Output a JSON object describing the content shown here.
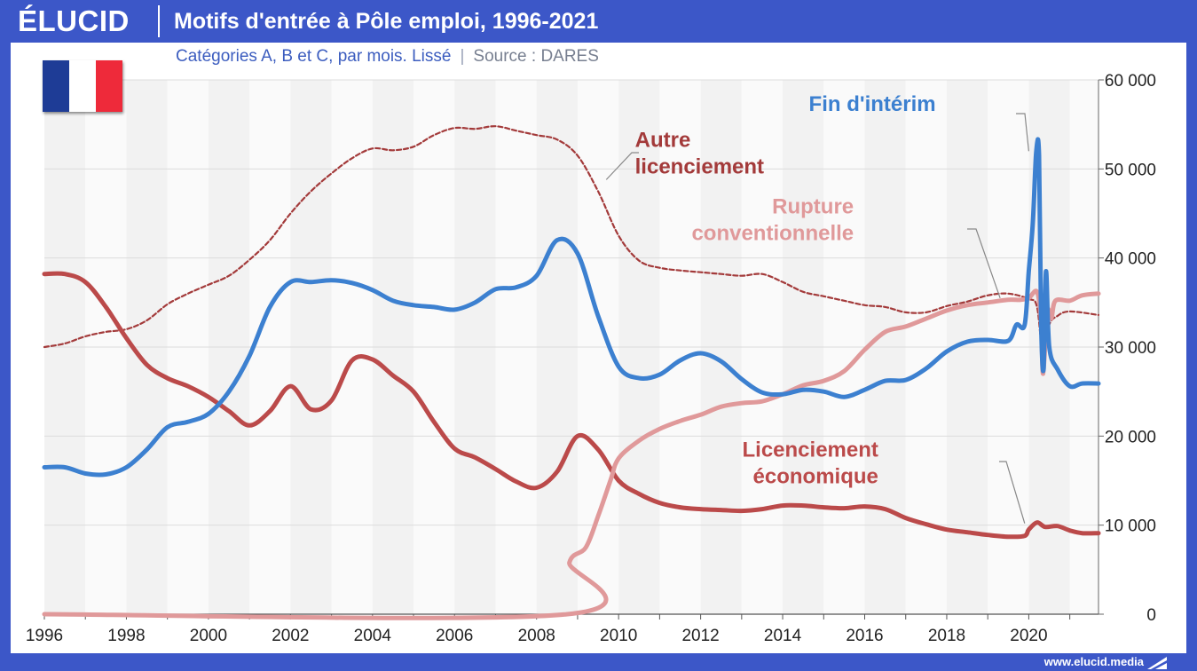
{
  "header": {
    "logo": "ÉLUCID",
    "title": "Motifs d'entrée à Pôle emploi, 1996-2021",
    "subtitle": "Catégories A, B et C, par mois. Lissé",
    "source": "Source : DARES"
  },
  "footer": {
    "url": "www.elucid.media"
  },
  "flag": {
    "name": "france-flag",
    "colors": [
      "#1e3c96",
      "#ffffff",
      "#ee2a3a"
    ]
  },
  "chart_data": {
    "type": "line",
    "title": "Motifs d'entrée à Pôle emploi, 1996-2021",
    "subtitle": "Catégories A, B et C, par mois. Lissé",
    "xlim": [
      1996,
      2021.7
    ],
    "ylim": [
      0,
      60000
    ],
    "x_ticks": [
      1996,
      1998,
      2000,
      2002,
      2004,
      2006,
      2008,
      2010,
      2012,
      2014,
      2016,
      2018,
      2020
    ],
    "x_tick_labels": [
      "1996",
      "1998",
      "2000",
      "2002",
      "2004",
      "2006",
      "2008",
      "2010",
      "2012",
      "2014",
      "2016",
      "2018",
      "2020"
    ],
    "y_ticks": [
      0,
      10000,
      20000,
      30000,
      40000,
      50000,
      60000
    ],
    "y_tick_labels": [
      "0",
      "10 000",
      "20 000",
      "30 000",
      "40 000",
      "50 000",
      "60 000"
    ],
    "y_axis_side": "right",
    "grid": "horizontal",
    "background_bands": "alternating yearly",
    "series": [
      {
        "name": "Autre licenciement",
        "label_lines": [
          "Autre",
          "licenciement"
        ],
        "color": "#a33a3a",
        "style": "dashed",
        "points": [
          [
            1996,
            30000
          ],
          [
            1996.5,
            30400
          ],
          [
            1997,
            31200
          ],
          [
            1997.5,
            31700
          ],
          [
            1998,
            32000
          ],
          [
            1998.5,
            33000
          ],
          [
            1999,
            34800
          ],
          [
            1999.5,
            36000
          ],
          [
            2000,
            37000
          ],
          [
            2000.5,
            38000
          ],
          [
            2001,
            39800
          ],
          [
            2001.5,
            42000
          ],
          [
            2002,
            45000
          ],
          [
            2002.5,
            47500
          ],
          [
            2003,
            49500
          ],
          [
            2003.5,
            51200
          ],
          [
            2004,
            52300
          ],
          [
            2004.5,
            52100
          ],
          [
            2005,
            52500
          ],
          [
            2005.5,
            53800
          ],
          [
            2006,
            54600
          ],
          [
            2006.5,
            54500
          ],
          [
            2007,
            54800
          ],
          [
            2007.5,
            54300
          ],
          [
            2008,
            53800
          ],
          [
            2008.5,
            53300
          ],
          [
            2009,
            51500
          ],
          [
            2009.5,
            47500
          ],
          [
            2010,
            42500
          ],
          [
            2010.5,
            39700
          ],
          [
            2011,
            38900
          ],
          [
            2011.5,
            38600
          ],
          [
            2012,
            38400
          ],
          [
            2012.5,
            38200
          ],
          [
            2013,
            38000
          ],
          [
            2013.5,
            38200
          ],
          [
            2014,
            37300
          ],
          [
            2014.5,
            36200
          ],
          [
            2015,
            35700
          ],
          [
            2015.5,
            35200
          ],
          [
            2016,
            34700
          ],
          [
            2016.5,
            34500
          ],
          [
            2017,
            33900
          ],
          [
            2017.5,
            33900
          ],
          [
            2018,
            34600
          ],
          [
            2018.5,
            35100
          ],
          [
            2019,
            35800
          ],
          [
            2019.5,
            36000
          ],
          [
            2020,
            35400
          ],
          [
            2020.2,
            34500
          ],
          [
            2020.35,
            29000
          ],
          [
            2020.5,
            32500
          ],
          [
            2020.7,
            33500
          ],
          [
            2021,
            34000
          ],
          [
            2021.7,
            33600
          ]
        ]
      },
      {
        "name": "Fin d'intérim",
        "label_lines": [
          "Fin d'intérim"
        ],
        "color": "#3c80d0",
        "style": "solid",
        "points": [
          [
            1996,
            16500
          ],
          [
            1996.5,
            16500
          ],
          [
            1997,
            15800
          ],
          [
            1997.5,
            15700
          ],
          [
            1998,
            16500
          ],
          [
            1998.5,
            18500
          ],
          [
            1999,
            21000
          ],
          [
            1999.5,
            21600
          ],
          [
            2000,
            22500
          ],
          [
            2000.5,
            25000
          ],
          [
            2001,
            29000
          ],
          [
            2001.5,
            34500
          ],
          [
            2002,
            37300
          ],
          [
            2002.5,
            37300
          ],
          [
            2003,
            37500
          ],
          [
            2003.5,
            37200
          ],
          [
            2004,
            36400
          ],
          [
            2004.5,
            35200
          ],
          [
            2005,
            34700
          ],
          [
            2005.5,
            34500
          ],
          [
            2006,
            34200
          ],
          [
            2006.5,
            35000
          ],
          [
            2007,
            36500
          ],
          [
            2007.5,
            36700
          ],
          [
            2008,
            38000
          ],
          [
            2008.5,
            42000
          ],
          [
            2009,
            40500
          ],
          [
            2009.5,
            33500
          ],
          [
            2010,
            27800
          ],
          [
            2010.5,
            26500
          ],
          [
            2011,
            26900
          ],
          [
            2011.5,
            28500
          ],
          [
            2012,
            29300
          ],
          [
            2012.5,
            28400
          ],
          [
            2013,
            26400
          ],
          [
            2013.5,
            24900
          ],
          [
            2014,
            24700
          ],
          [
            2014.5,
            25200
          ],
          [
            2015,
            25000
          ],
          [
            2015.5,
            24400
          ],
          [
            2016,
            25200
          ],
          [
            2016.5,
            26200
          ],
          [
            2017,
            26300
          ],
          [
            2017.5,
            27600
          ],
          [
            2018,
            29500
          ],
          [
            2018.5,
            30600
          ],
          [
            2019,
            30800
          ],
          [
            2019.5,
            30700
          ],
          [
            2019.7,
            32500
          ],
          [
            2019.9,
            32500
          ],
          [
            2020,
            38500
          ],
          [
            2020.1,
            44000
          ],
          [
            2020.18,
            51800
          ],
          [
            2020.25,
            51500
          ],
          [
            2020.3,
            33000
          ],
          [
            2020.36,
            27500
          ],
          [
            2020.42,
            38500
          ],
          [
            2020.5,
            30000
          ],
          [
            2020.7,
            27500
          ],
          [
            2021,
            25600
          ],
          [
            2021.3,
            25900
          ],
          [
            2021.7,
            25900
          ]
        ]
      },
      {
        "name": "Rupture conventionnelle",
        "label_lines": [
          "Rupture",
          "conventionnelle"
        ],
        "color": "#e0999a",
        "style": "solid",
        "points": [
          [
            1996,
            0
          ],
          [
            2008.75,
            0
          ],
          [
            2008.8,
            5800
          ],
          [
            2009.2,
            7500
          ],
          [
            2009.5,
            11000
          ],
          [
            2009.8,
            15000
          ],
          [
            2010,
            17500
          ],
          [
            2010.5,
            19500
          ],
          [
            2011,
            20800
          ],
          [
            2011.5,
            21700
          ],
          [
            2012,
            22400
          ],
          [
            2012.5,
            23300
          ],
          [
            2013,
            23700
          ],
          [
            2013.5,
            23900
          ],
          [
            2014,
            24700
          ],
          [
            2014.5,
            25700
          ],
          [
            2015,
            26200
          ],
          [
            2015.5,
            27300
          ],
          [
            2016,
            29700
          ],
          [
            2016.5,
            31700
          ],
          [
            2017,
            32300
          ],
          [
            2017.5,
            33200
          ],
          [
            2018,
            34100
          ],
          [
            2018.5,
            34700
          ],
          [
            2019,
            35000
          ],
          [
            2019.5,
            35300
          ],
          [
            2019.8,
            35300
          ],
          [
            2020,
            35500
          ],
          [
            2020.2,
            36200
          ],
          [
            2020.3,
            33000
          ],
          [
            2020.35,
            27000
          ],
          [
            2020.45,
            34000
          ],
          [
            2020.55,
            33200
          ],
          [
            2020.65,
            35200
          ],
          [
            2021,
            35200
          ],
          [
            2021.3,
            35800
          ],
          [
            2021.7,
            36000
          ]
        ]
      },
      {
        "name": "Licenciement économique",
        "label_lines": [
          "Licenciement",
          "économique"
        ],
        "color": "#bb4a4a",
        "style": "solid",
        "points": [
          [
            1996,
            38200
          ],
          [
            1996.5,
            38200
          ],
          [
            1997,
            37300
          ],
          [
            1997.5,
            34500
          ],
          [
            1998,
            31000
          ],
          [
            1998.5,
            28000
          ],
          [
            1999,
            26500
          ],
          [
            1999.5,
            25600
          ],
          [
            2000,
            24400
          ],
          [
            2000.5,
            22800
          ],
          [
            2001,
            21200
          ],
          [
            2001.5,
            22800
          ],
          [
            2002,
            25600
          ],
          [
            2002.5,
            23000
          ],
          [
            2003,
            24000
          ],
          [
            2003.5,
            28500
          ],
          [
            2004,
            28600
          ],
          [
            2004.5,
            26800
          ],
          [
            2005,
            25000
          ],
          [
            2005.5,
            21600
          ],
          [
            2006,
            18600
          ],
          [
            2006.5,
            17600
          ],
          [
            2007,
            16300
          ],
          [
            2007.5,
            14900
          ],
          [
            2008,
            14200
          ],
          [
            2008.5,
            16000
          ],
          [
            2009,
            20000
          ],
          [
            2009.5,
            18500
          ],
          [
            2010,
            15000
          ],
          [
            2010.5,
            13500
          ],
          [
            2011,
            12500
          ],
          [
            2011.5,
            12000
          ],
          [
            2012,
            11800
          ],
          [
            2012.5,
            11700
          ],
          [
            2013,
            11600
          ],
          [
            2013.5,
            11800
          ],
          [
            2014,
            12200
          ],
          [
            2014.5,
            12200
          ],
          [
            2015,
            12000
          ],
          [
            2015.5,
            11900
          ],
          [
            2016,
            12100
          ],
          [
            2016.5,
            11800
          ],
          [
            2017,
            10800
          ],
          [
            2017.5,
            10100
          ],
          [
            2018,
            9500
          ],
          [
            2018.5,
            9200
          ],
          [
            2019,
            8900
          ],
          [
            2019.5,
            8700
          ],
          [
            2019.9,
            8800
          ],
          [
            2020,
            9500
          ],
          [
            2020.2,
            10300
          ],
          [
            2020.4,
            9800
          ],
          [
            2020.7,
            9900
          ],
          [
            2021,
            9400
          ],
          [
            2021.3,
            9100
          ],
          [
            2021.7,
            9100
          ]
        ]
      }
    ],
    "annotations": [
      {
        "series": "Autre licenciement",
        "text_lines": [
          "Autre",
          "licenciement"
        ],
        "anchor": [
          2010.4,
          52000
        ],
        "leader_to": [
          2009.7,
          48800
        ]
      },
      {
        "series": "Fin d'intérim",
        "text_lines": [
          "Fin d'intérim"
        ],
        "anchor": [
          2017.3,
          56000
        ],
        "leader_to": [
          2020.0,
          52000
        ]
      },
      {
        "series": "Rupture conventionnelle",
        "text_lines": [
          "Rupture",
          "conventionnelle"
        ],
        "anchor": [
          2015.3,
          44500
        ],
        "leader_to": [
          2019.3,
          35500
        ]
      },
      {
        "series": "Licenciement économique",
        "text_lines": [
          "Licenciement",
          "économique"
        ],
        "anchor": [
          2015.9,
          17200
        ],
        "leader_to": [
          2019.9,
          10200
        ]
      }
    ]
  }
}
